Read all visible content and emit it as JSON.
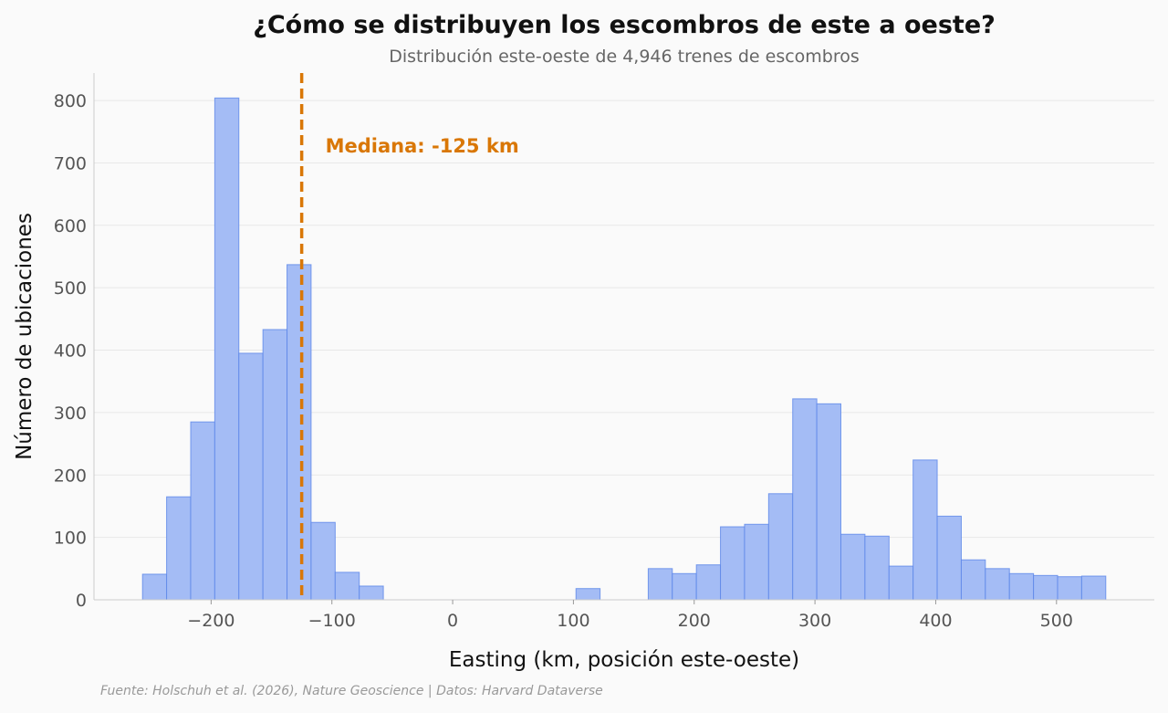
{
  "chart_data": {
    "type": "bar",
    "title": "¿Cómo se distribuyen los escombros de este a oeste?",
    "subtitle": "Distribución este-oeste de 4,946 trenes de escombros",
    "xlabel": "Easting (km, posición este-oeste)",
    "ylabel": "Número de ubicaciones",
    "source": "Fuente: Holschuh et al. (2026), Nature Geoscience | Datos: Harvard Dataverse",
    "bin_start": -256.8,
    "bin_width": 19.94,
    "values": [
      41,
      165,
      285,
      804,
      395,
      433,
      537,
      124,
      44,
      22,
      0,
      0,
      0,
      0,
      0,
      0,
      0,
      0,
      18,
      0,
      0,
      50,
      42,
      56,
      117,
      121,
      170,
      322,
      314,
      105,
      102,
      54,
      224,
      134,
      64,
      50,
      42,
      39,
      37,
      38
    ],
    "xlim": [
      -297,
      581
    ],
    "ylim": [
      0,
      844
    ],
    "xticks": [
      -200,
      -100,
      0,
      100,
      200,
      300,
      400,
      500
    ],
    "xtick_labels": [
      "−200",
      "−100",
      "0",
      "100",
      "200",
      "300",
      "400",
      "500"
    ],
    "yticks": [
      0,
      100,
      200,
      300,
      400,
      500,
      600,
      700,
      800
    ],
    "grid": "horizontal",
    "median": {
      "value": -125,
      "label": "Mediana: -125 km",
      "color": "#d97706"
    },
    "bar_color": "#a4bcf5",
    "bar_edge_color": "#5b86e8"
  }
}
